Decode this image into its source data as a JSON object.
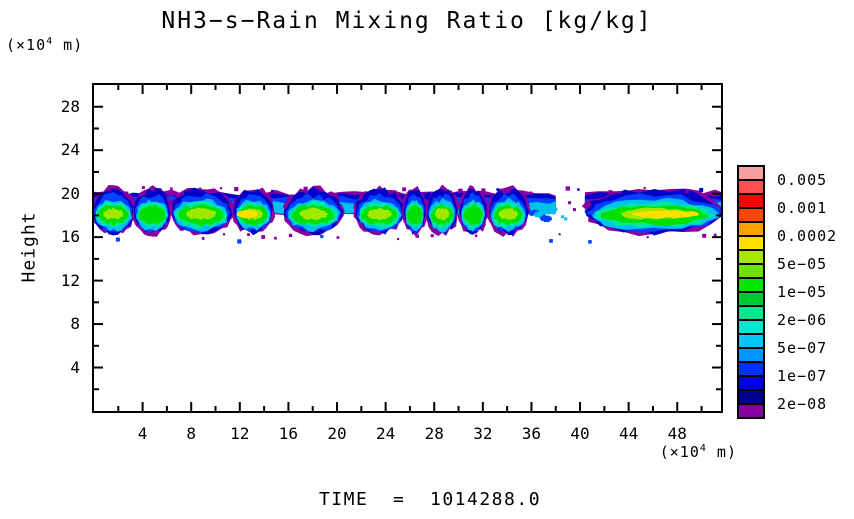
{
  "title": "NH3−s−Rain Mixing Ratio [kg/kg]",
  "time_label": "TIME  =  1014288.0",
  "axes": {
    "y_label": "Height",
    "unit_prefix": "(×10",
    "unit_sup": "4",
    "unit_suffix": " m)"
  },
  "chart_data": {
    "type": "filled_contour",
    "title": "NH3−s−Rain Mixing Ratio [kg/kg]",
    "xlabel": "(×10^4 m)",
    "ylabel": "Height (×10^4 m)",
    "time_text": "TIME  =  1014288.0",
    "x_range": [
      0,
      51.6
    ],
    "y_range": [
      0,
      30
    ],
    "x_major_ticks": [
      4,
      8,
      12,
      16,
      20,
      24,
      28,
      32,
      36,
      40,
      44,
      48
    ],
    "x_minor_step": 2,
    "y_major_ticks": [
      4,
      8,
      12,
      16,
      20,
      24,
      28
    ],
    "y_minor_step": 2,
    "grid": false,
    "legend_position": "right",
    "colorbar": {
      "colors_top_to_bottom": [
        "#F4A0A0",
        "#FF5050",
        "#FF0000",
        "#FF4500",
        "#FFA000",
        "#FFE000",
        "#A8E800",
        "#6CE400",
        "#00E800",
        "#00C830",
        "#00E890",
        "#00E8D0",
        "#00C8F0",
        "#0096FF",
        "#0032FF",
        "#0000E0",
        "#000090",
        "#8800A0"
      ],
      "labels_top_to_bottom": [
        "0.005",
        "0.001",
        "0.0002",
        "5e−05",
        "1e−05",
        "2e−06",
        "5e−07",
        "1e−07",
        "2e−08"
      ],
      "label_boundary_note": "labels sit at every second box boundary starting below the top box"
    },
    "band": {
      "description": "horizontal streaky rain layer",
      "y_top": 20.3,
      "y_bottom": 16.2,
      "ribbon_runs": [
        [
          0.0,
          38.0
        ],
        [
          40.4,
          51.6
        ]
      ],
      "gaps": [
        [
          38.0,
          40.4
        ]
      ],
      "segments": [
        {
          "x0": 0.0,
          "x1": 3.2,
          "level": 4
        },
        {
          "x0": 3.4,
          "x1": 6.2,
          "level": 3
        },
        {
          "x0": 6.4,
          "x1": 11.2,
          "level": 4
        },
        {
          "x0": 11.6,
          "x1": 14.6,
          "level": 5,
          "core_x": 12.6,
          "core_w": 0.9
        },
        {
          "x0": 15.8,
          "x1": 20.3,
          "level": 4
        },
        {
          "x0": 21.6,
          "x1": 25.4,
          "level": 4
        },
        {
          "x0": 25.6,
          "x1": 27.2,
          "level": 3
        },
        {
          "x0": 27.5,
          "x1": 29.8,
          "level": 4
        },
        {
          "x0": 30.2,
          "x1": 32.2,
          "level": 3
        },
        {
          "x0": 32.6,
          "x1": 35.6,
          "level": 4
        },
        {
          "x0": 36.0,
          "x1": 37.9,
          "level": 1
        },
        {
          "x0": 40.6,
          "x1": 51.6,
          "level": 5,
          "core_x": 47.0,
          "core_w": 2.8
        }
      ],
      "layer_colors": {
        "speck": "#8800A0",
        "navy": "#0000C8",
        "blue": "#0040FF",
        "cyan": "#00C0F0",
        "spring": "#00E8A0",
        "green": "#00E000",
        "chartreuse": "#A0E800",
        "yellow": "#FFE000"
      }
    }
  }
}
